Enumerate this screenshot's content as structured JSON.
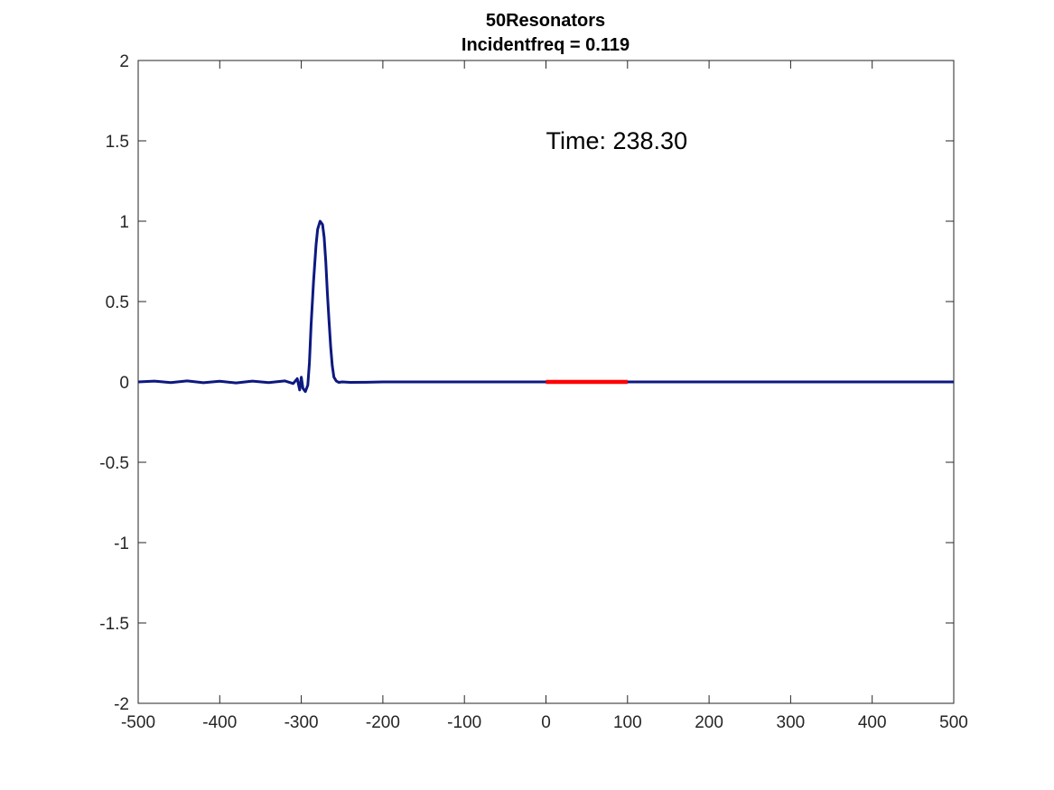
{
  "chart_data": {
    "type": "line",
    "title": "50Resonators",
    "subtitle": "Incidentfreq = 0.119",
    "xlabel": "",
    "ylabel": "",
    "xlim": [
      -500,
      500
    ],
    "ylim": [
      -2,
      2
    ],
    "x_ticks": [
      "-500",
      "-400",
      "-300",
      "-200",
      "-100",
      "0",
      "100",
      "200",
      "300",
      "400",
      "500"
    ],
    "y_ticks": [
      "-2",
      "-1.5",
      "-1",
      "-0.5",
      "0",
      "0.5",
      "1",
      "1.5",
      "2"
    ],
    "grid": false,
    "legend": "none",
    "annotation": {
      "text": "Time: 238.30",
      "x": 0,
      "y": 1.5
    },
    "series": [
      {
        "color": "#0d1980",
        "x": [
          -500,
          -480,
          -460,
          -440,
          -420,
          -400,
          -380,
          -360,
          -340,
          -320,
          -310,
          -305,
          -302,
          -300,
          -298,
          -295,
          -292,
          -290,
          -288,
          -285,
          -282,
          -280,
          -277,
          -274,
          -272,
          -270,
          -268,
          -266,
          -264,
          -262,
          -260,
          -257,
          -254,
          -250,
          -240,
          -220,
          -200,
          -150,
          -100,
          -50,
          0,
          100,
          200,
          300,
          400,
          500
        ],
        "y": [
          0.0,
          0.005,
          -0.004,
          0.006,
          -0.005,
          0.004,
          -0.006,
          0.005,
          -0.004,
          0.006,
          -0.01,
          0.02,
          -0.05,
          0.03,
          -0.04,
          -0.06,
          -0.02,
          0.12,
          0.35,
          0.62,
          0.85,
          0.95,
          1.0,
          0.98,
          0.9,
          0.75,
          0.55,
          0.38,
          0.22,
          0.1,
          0.03,
          0.005,
          -0.003,
          0.0,
          -0.003,
          -0.002,
          0.0,
          0.0,
          0.0,
          0.0,
          0.0,
          0.0,
          0.0,
          0.0,
          0.0,
          0.0
        ]
      },
      {
        "color": "#ff0000",
        "x": [
          0,
          100
        ],
        "y": [
          0,
          0
        ]
      }
    ]
  }
}
